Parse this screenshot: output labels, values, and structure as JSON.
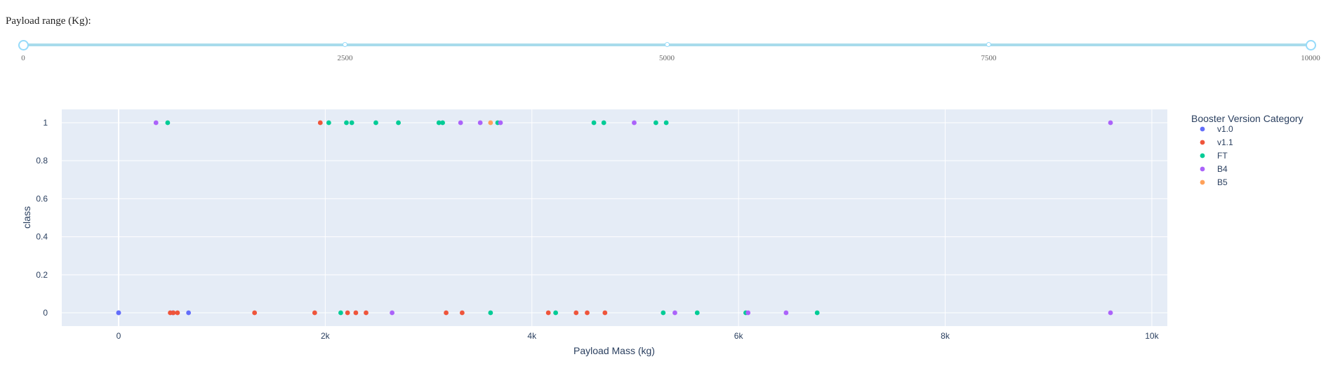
{
  "slider": {
    "label": "Payload range (Kg):",
    "min": 0,
    "max": 10000,
    "value": [
      0,
      10000
    ],
    "marks": [
      "0",
      "2500",
      "5000",
      "7500",
      "10000"
    ]
  },
  "chart_data": {
    "type": "scatter",
    "xlabel": "Payload Mass (kg)",
    "ylabel": "class",
    "xlim": [
      -550,
      10150
    ],
    "ylim": [
      -0.07,
      1.07
    ],
    "x_ticks": [
      0,
      2000,
      4000,
      6000,
      8000,
      10000
    ],
    "x_tick_labels": [
      "0",
      "2k",
      "4k",
      "6k",
      "8k",
      "10k"
    ],
    "y_ticks": [
      0,
      0.2,
      0.4,
      0.6,
      0.8,
      1
    ],
    "y_tick_labels": [
      "0",
      "0.2",
      "0.4",
      "0.6",
      "0.8",
      "1"
    ],
    "grid": true,
    "legend_title": "Booster Version Category",
    "legend_position": "right",
    "series": [
      {
        "name": "v1.0",
        "color": "#636efa",
        "points": [
          [
            0,
            0
          ],
          [
            0,
            0
          ],
          [
            525,
            0
          ],
          [
            677,
            0
          ]
        ]
      },
      {
        "name": "v1.1",
        "color": "#ef553b",
        "points": [
          [
            500,
            0
          ],
          [
            530,
            0
          ],
          [
            570,
            0
          ],
          [
            1316,
            0
          ],
          [
            1898,
            0
          ],
          [
            1952,
            1
          ],
          [
            2216,
            0
          ],
          [
            2296,
            0
          ],
          [
            2395,
            0
          ],
          [
            3170,
            0
          ],
          [
            3325,
            0
          ],
          [
            4159,
            0
          ],
          [
            4428,
            0
          ],
          [
            4535,
            0
          ],
          [
            4707,
            0
          ]
        ]
      },
      {
        "name": "FT",
        "color": "#00cc96",
        "points": [
          [
            475,
            1
          ],
          [
            2034,
            1
          ],
          [
            2150,
            0
          ],
          [
            2205,
            1
          ],
          [
            2257,
            1
          ],
          [
            2490,
            1
          ],
          [
            2708,
            1
          ],
          [
            3100,
            1
          ],
          [
            3136,
            1
          ],
          [
            3600,
            0
          ],
          [
            3669,
            1
          ],
          [
            4230,
            0
          ],
          [
            4600,
            1
          ],
          [
            4696,
            1
          ],
          [
            5200,
            1
          ],
          [
            5271,
            0
          ],
          [
            5300,
            1
          ],
          [
            5600,
            0
          ],
          [
            6070,
            0
          ],
          [
            6761,
            0
          ]
        ]
      },
      {
        "name": "B4",
        "color": "#ab63fa",
        "points": [
          [
            362,
            1
          ],
          [
            2647,
            0
          ],
          [
            3310,
            1
          ],
          [
            3500,
            1
          ],
          [
            3696,
            1
          ],
          [
            4990,
            1
          ],
          [
            5384,
            0
          ],
          [
            6092,
            0
          ],
          [
            6460,
            0
          ],
          [
            9600,
            1
          ],
          [
            9600,
            0
          ]
        ]
      },
      {
        "name": "B5",
        "color": "#ffa15a",
        "points": [
          [
            3600,
            1
          ]
        ]
      }
    ]
  }
}
